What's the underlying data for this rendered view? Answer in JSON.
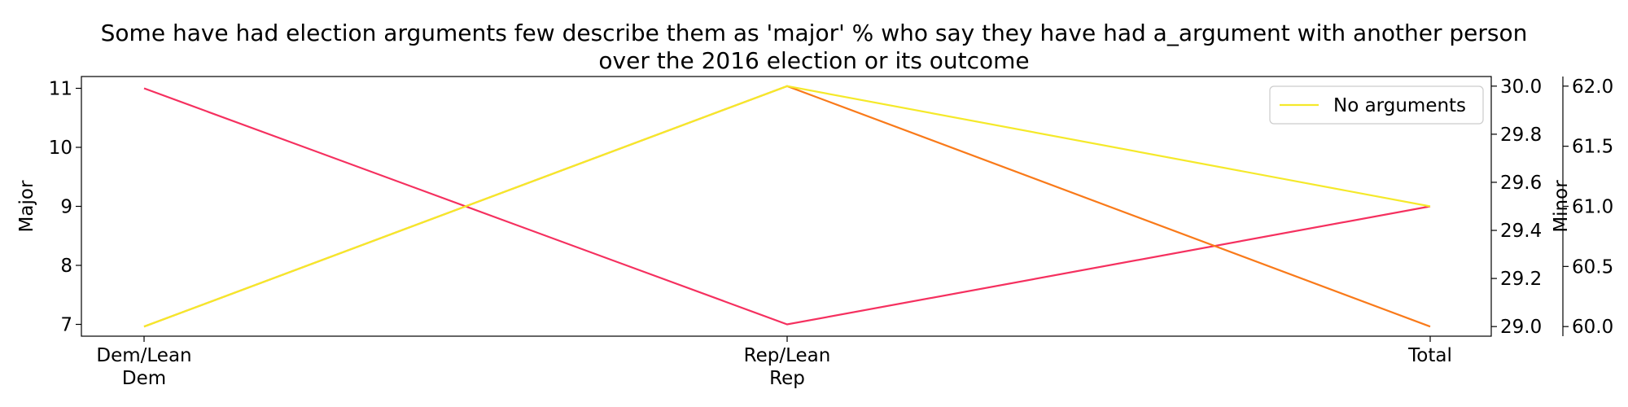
{
  "chart_data": {
    "type": "line",
    "title": [
      "Some have had election arguments few describe them as 'major' % who say they have had a_argument with another person",
      "over the 2016 election or its outcome"
    ],
    "categories": [
      [
        "Dem/Lean",
        "Dem"
      ],
      [
        "Rep/Lean",
        "Rep"
      ],
      [
        "Total"
      ]
    ],
    "axes": [
      {
        "id": "major",
        "label": "Major",
        "side": "left",
        "ylim": [
          6.8,
          11.2
        ],
        "ticks": [
          7,
          8,
          9,
          10,
          11
        ],
        "tick_labels": [
          "7",
          "8",
          "9",
          "10",
          "11"
        ]
      },
      {
        "id": "minor",
        "label": "Minor",
        "side": "right",
        "ylim": [
          28.96,
          30.04
        ],
        "ticks": [
          29.0,
          29.2,
          29.4,
          29.6,
          29.8,
          30.0
        ],
        "tick_labels": [
          "29.0",
          "29.2",
          "29.4",
          "29.6",
          "29.8",
          "30.0"
        ]
      },
      {
        "id": "no_arguments",
        "label": "",
        "side": "right-outer",
        "ylim": [
          59.92,
          62.08
        ],
        "ticks": [
          60.0,
          60.5,
          61.0,
          61.5,
          62.0
        ],
        "tick_labels": [
          "60.0",
          "60.5",
          "61.0",
          "61.5",
          "62.0"
        ]
      }
    ],
    "series": [
      {
        "axis": "major",
        "color": "#f5305f",
        "values": [
          11,
          7,
          9
        ]
      },
      {
        "axis": "minor",
        "color": "#f97a1a",
        "values": [
          29,
          30,
          29
        ]
      },
      {
        "name": "No arguments",
        "axis": "no_arguments",
        "color": "#f5e92a",
        "values": [
          60,
          62,
          61
        ]
      }
    ],
    "legend": {
      "position": "top-right"
    },
    "grid": false
  }
}
